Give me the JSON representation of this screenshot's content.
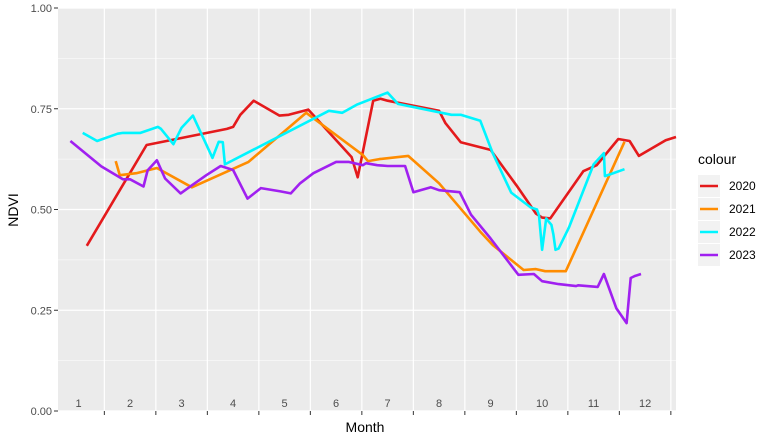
{
  "chart_data": {
    "type": "line",
    "xlabel": "Month",
    "ylabel": "NDVI",
    "xlim": [
      0.6,
      12.6
    ],
    "ylim": [
      0,
      1
    ],
    "y_ticks": [
      "0.00",
      "0.25",
      "0.50",
      "0.75",
      "1.00"
    ],
    "y_tick_values": [
      0,
      0.25,
      0.5,
      0.75,
      1.0
    ],
    "month_labels": [
      "1",
      "2",
      "3",
      "4",
      "5",
      "6",
      "7",
      "8",
      "9",
      "10",
      "11",
      "12"
    ],
    "grid": true,
    "legend": {
      "title": "colour",
      "position": "right"
    },
    "series": [
      {
        "name": "2020",
        "color": "#E41A1C",
        "x": [
          1.16,
          2.32,
          3.88,
          4.0,
          4.14,
          4.4,
          4.9,
          5.08,
          5.46,
          6.3,
          6.42,
          6.72,
          6.86,
          7.0,
          8.0,
          8.12,
          8.42,
          9.0,
          9.5,
          9.88,
          10.0,
          10.16,
          10.8,
          11.06,
          11.48,
          11.7,
          11.88,
          12.4,
          12.6
        ],
        "y": [
          0.41,
          0.66,
          0.7,
          0.705,
          0.735,
          0.77,
          0.733,
          0.735,
          0.748,
          0.63,
          0.58,
          0.77,
          0.775,
          0.77,
          0.745,
          0.715,
          0.667,
          0.648,
          0.56,
          0.49,
          0.48,
          0.478,
          0.595,
          0.61,
          0.675,
          0.67,
          0.633,
          0.672,
          0.68
        ]
      },
      {
        "name": "2021",
        "color": "#FF8C00",
        "x": [
          1.72,
          1.8,
          2.12,
          2.52,
          3.2,
          4.3,
          5.42,
          6.52,
          6.62,
          6.84,
          7.4,
          8.0,
          8.8,
          9.04,
          9.64,
          9.88,
          10.06,
          10.46,
          11.6
        ],
        "y": [
          0.62,
          0.585,
          0.59,
          0.603,
          0.555,
          0.618,
          0.74,
          0.635,
          0.62,
          0.625,
          0.633,
          0.565,
          0.445,
          0.412,
          0.35,
          0.352,
          0.347,
          0.347,
          0.668
        ]
      },
      {
        "name": "2022",
        "color": "#00F5FF",
        "x": [
          1.08,
          1.36,
          1.76,
          1.86,
          2.2,
          2.54,
          2.6,
          2.84,
          3.0,
          3.22,
          3.6,
          3.72,
          3.8,
          3.84,
          5.86,
          6.12,
          6.4,
          7.0,
          7.2,
          8.24,
          8.42,
          8.8,
          9.04,
          9.4,
          9.78,
          9.9,
          9.94,
          10.0,
          10.08,
          10.14,
          10.18,
          10.22,
          10.26,
          10.32,
          10.52,
          11.0,
          11.2,
          11.22,
          11.34,
          11.6
        ],
        "y": [
          0.69,
          0.67,
          0.688,
          0.69,
          0.69,
          0.705,
          0.7,
          0.662,
          0.703,
          0.733,
          0.628,
          0.668,
          0.667,
          0.612,
          0.745,
          0.74,
          0.76,
          0.79,
          0.762,
          0.735,
          0.735,
          0.72,
          0.64,
          0.542,
          0.505,
          0.5,
          0.485,
          0.4,
          0.478,
          0.468,
          0.462,
          0.438,
          0.4,
          0.403,
          0.455,
          0.612,
          0.64,
          0.583,
          0.588,
          0.6
        ]
      },
      {
        "name": "2023",
        "color": "#A020F0",
        "x": [
          0.84,
          1.44,
          1.86,
          2.0,
          2.26,
          2.34,
          2.52,
          2.68,
          2.98,
          3.2,
          3.48,
          3.76,
          4.0,
          4.28,
          4.54,
          4.92,
          5.12,
          5.3,
          5.56,
          6.0,
          6.24,
          6.52,
          6.58,
          6.8,
          7.0,
          7.34,
          7.5,
          7.84,
          8.0,
          8.4,
          8.62,
          9.0,
          9.54,
          9.84,
          10.0,
          10.32,
          10.66,
          10.7,
          11.08,
          11.2,
          11.44,
          11.64,
          11.72,
          11.8,
          11.92
        ],
        "y": [
          0.67,
          0.607,
          0.575,
          0.575,
          0.557,
          0.597,
          0.622,
          0.577,
          0.54,
          0.56,
          0.585,
          0.608,
          0.598,
          0.527,
          0.553,
          0.545,
          0.54,
          0.565,
          0.59,
          0.618,
          0.618,
          0.61,
          0.615,
          0.61,
          0.608,
          0.608,
          0.543,
          0.555,
          0.548,
          0.543,
          0.487,
          0.428,
          0.338,
          0.34,
          0.322,
          0.315,
          0.31,
          0.312,
          0.308,
          0.34,
          0.255,
          0.218,
          0.33,
          0.335,
          0.34
        ]
      }
    ]
  }
}
